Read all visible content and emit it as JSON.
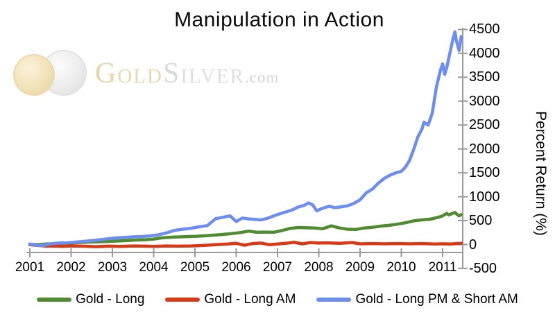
{
  "title": "Manipulation in Action",
  "watermark": {
    "gold_initial": "G",
    "gold_rest": "OLD",
    "silver_initial": "S",
    "silver_rest": "ILVER",
    "domain": ".com",
    "gold_color": "#e7d6a8",
    "silver_color": "#dadada"
  },
  "chart_data": {
    "type": "line",
    "title": "Manipulation in Action",
    "xlabel": "",
    "ylabel": "Percent Return (%)",
    "xlim": [
      2001,
      2011.5
    ],
    "ylim": [
      -500,
      4500
    ],
    "x_ticks": [
      2001,
      2002,
      2003,
      2004,
      2005,
      2006,
      2007,
      2008,
      2009,
      2010,
      2011
    ],
    "y_ticks": [
      -500,
      0,
      500,
      1000,
      1500,
      2000,
      2500,
      3000,
      3500,
      4000,
      4500
    ],
    "grid": false,
    "legend_position": "bottom",
    "axis_color": "#9a9a9a",
    "series": [
      {
        "name": "Gold - Long",
        "color": "#4e8b31",
        "points": [
          [
            2001.0,
            5
          ],
          [
            2001.2,
            -5
          ],
          [
            2001.4,
            10
          ],
          [
            2001.6,
            15
          ],
          [
            2001.8,
            10
          ],
          [
            2002.0,
            30
          ],
          [
            2002.3,
            45
          ],
          [
            2002.6,
            55
          ],
          [
            2002.9,
            65
          ],
          [
            2003.2,
            75
          ],
          [
            2003.5,
            90
          ],
          [
            2003.8,
            100
          ],
          [
            2004.0,
            115
          ],
          [
            2004.2,
            140
          ],
          [
            2004.5,
            155
          ],
          [
            2004.8,
            165
          ],
          [
            2005.0,
            170
          ],
          [
            2005.3,
            185
          ],
          [
            2005.6,
            205
          ],
          [
            2005.9,
            230
          ],
          [
            2006.1,
            250
          ],
          [
            2006.3,
            280
          ],
          [
            2006.5,
            255
          ],
          [
            2006.7,
            260
          ],
          [
            2006.9,
            255
          ],
          [
            2007.1,
            290
          ],
          [
            2007.3,
            335
          ],
          [
            2007.5,
            355
          ],
          [
            2007.7,
            350
          ],
          [
            2007.9,
            345
          ],
          [
            2008.1,
            330
          ],
          [
            2008.3,
            390
          ],
          [
            2008.5,
            345
          ],
          [
            2008.7,
            320
          ],
          [
            2008.9,
            315
          ],
          [
            2009.1,
            345
          ],
          [
            2009.3,
            360
          ],
          [
            2009.5,
            385
          ],
          [
            2009.7,
            400
          ],
          [
            2009.9,
            425
          ],
          [
            2010.1,
            455
          ],
          [
            2010.3,
            495
          ],
          [
            2010.5,
            515
          ],
          [
            2010.7,
            530
          ],
          [
            2010.9,
            570
          ],
          [
            2011.0,
            600
          ],
          [
            2011.1,
            650
          ],
          [
            2011.15,
            620
          ],
          [
            2011.25,
            655
          ],
          [
            2011.3,
            670
          ],
          [
            2011.35,
            630
          ],
          [
            2011.4,
            600
          ],
          [
            2011.45,
            625
          ]
        ]
      },
      {
        "name": "Gold - Long AM",
        "color": "#d93a15",
        "points": [
          [
            2001.0,
            -5
          ],
          [
            2001.2,
            -20
          ],
          [
            2001.4,
            -35
          ],
          [
            2001.6,
            -30
          ],
          [
            2001.8,
            -40
          ],
          [
            2002.0,
            -30
          ],
          [
            2002.3,
            -35
          ],
          [
            2002.6,
            -45
          ],
          [
            2002.9,
            -35
          ],
          [
            2003.2,
            -40
          ],
          [
            2003.5,
            -30
          ],
          [
            2003.8,
            -35
          ],
          [
            2004.0,
            -40
          ],
          [
            2004.3,
            -30
          ],
          [
            2004.6,
            -35
          ],
          [
            2004.9,
            -30
          ],
          [
            2005.2,
            -20
          ],
          [
            2005.5,
            -5
          ],
          [
            2005.8,
            10
          ],
          [
            2006.0,
            25
          ],
          [
            2006.2,
            -15
          ],
          [
            2006.4,
            20
          ],
          [
            2006.6,
            30
          ],
          [
            2006.8,
            -5
          ],
          [
            2007.0,
            10
          ],
          [
            2007.2,
            25
          ],
          [
            2007.4,
            45
          ],
          [
            2007.6,
            15
          ],
          [
            2007.8,
            40
          ],
          [
            2008.0,
            30
          ],
          [
            2008.2,
            35
          ],
          [
            2008.5,
            25
          ],
          [
            2008.8,
            40
          ],
          [
            2009.0,
            15
          ],
          [
            2009.3,
            20
          ],
          [
            2009.6,
            15
          ],
          [
            2009.9,
            20
          ],
          [
            2010.2,
            15
          ],
          [
            2010.5,
            20
          ],
          [
            2010.8,
            10
          ],
          [
            2011.0,
            15
          ],
          [
            2011.2,
            10
          ],
          [
            2011.45,
            25
          ]
        ]
      },
      {
        "name": "Gold - Long PM & Short AM",
        "color": "#6d8ef1",
        "points": [
          [
            2001.0,
            10
          ],
          [
            2001.15,
            -15
          ],
          [
            2001.3,
            -25
          ],
          [
            2001.5,
            15
          ],
          [
            2001.7,
            30
          ],
          [
            2001.9,
            35
          ],
          [
            2002.1,
            50
          ],
          [
            2002.3,
            65
          ],
          [
            2002.5,
            80
          ],
          [
            2002.7,
            100
          ],
          [
            2002.9,
            120
          ],
          [
            2003.1,
            140
          ],
          [
            2003.3,
            150
          ],
          [
            2003.5,
            160
          ],
          [
            2003.7,
            165
          ],
          [
            2003.9,
            180
          ],
          [
            2004.1,
            200
          ],
          [
            2004.3,
            240
          ],
          [
            2004.5,
            295
          ],
          [
            2004.7,
            320
          ],
          [
            2004.9,
            340
          ],
          [
            2005.1,
            370
          ],
          [
            2005.3,
            395
          ],
          [
            2005.5,
            540
          ],
          [
            2005.7,
            575
          ],
          [
            2005.85,
            600
          ],
          [
            2006.0,
            480
          ],
          [
            2006.15,
            555
          ],
          [
            2006.3,
            535
          ],
          [
            2006.45,
            525
          ],
          [
            2006.6,
            515
          ],
          [
            2006.75,
            545
          ],
          [
            2006.9,
            595
          ],
          [
            2007.05,
            640
          ],
          [
            2007.2,
            680
          ],
          [
            2007.35,
            720
          ],
          [
            2007.5,
            785
          ],
          [
            2007.65,
            820
          ],
          [
            2007.75,
            870
          ],
          [
            2007.85,
            830
          ],
          [
            2007.95,
            705
          ],
          [
            2008.1,
            760
          ],
          [
            2008.25,
            800
          ],
          [
            2008.4,
            770
          ],
          [
            2008.55,
            790
          ],
          [
            2008.7,
            810
          ],
          [
            2008.85,
            860
          ],
          [
            2009.0,
            935
          ],
          [
            2009.15,
            1080
          ],
          [
            2009.3,
            1160
          ],
          [
            2009.45,
            1290
          ],
          [
            2009.6,
            1390
          ],
          [
            2009.75,
            1460
          ],
          [
            2009.9,
            1510
          ],
          [
            2010.0,
            1530
          ],
          [
            2010.1,
            1620
          ],
          [
            2010.2,
            1760
          ],
          [
            2010.3,
            1990
          ],
          [
            2010.4,
            2250
          ],
          [
            2010.5,
            2420
          ],
          [
            2010.55,
            2560
          ],
          [
            2010.65,
            2500
          ],
          [
            2010.75,
            2750
          ],
          [
            2010.85,
            3300
          ],
          [
            2010.95,
            3650
          ],
          [
            2011.0,
            3780
          ],
          [
            2011.05,
            3560
          ],
          [
            2011.1,
            3700
          ],
          [
            2011.15,
            3900
          ],
          [
            2011.2,
            4100
          ],
          [
            2011.25,
            4300
          ],
          [
            2011.3,
            4450
          ],
          [
            2011.33,
            4280
          ],
          [
            2011.37,
            4150
          ],
          [
            2011.4,
            4060
          ],
          [
            2011.45,
            4350
          ]
        ]
      }
    ]
  }
}
